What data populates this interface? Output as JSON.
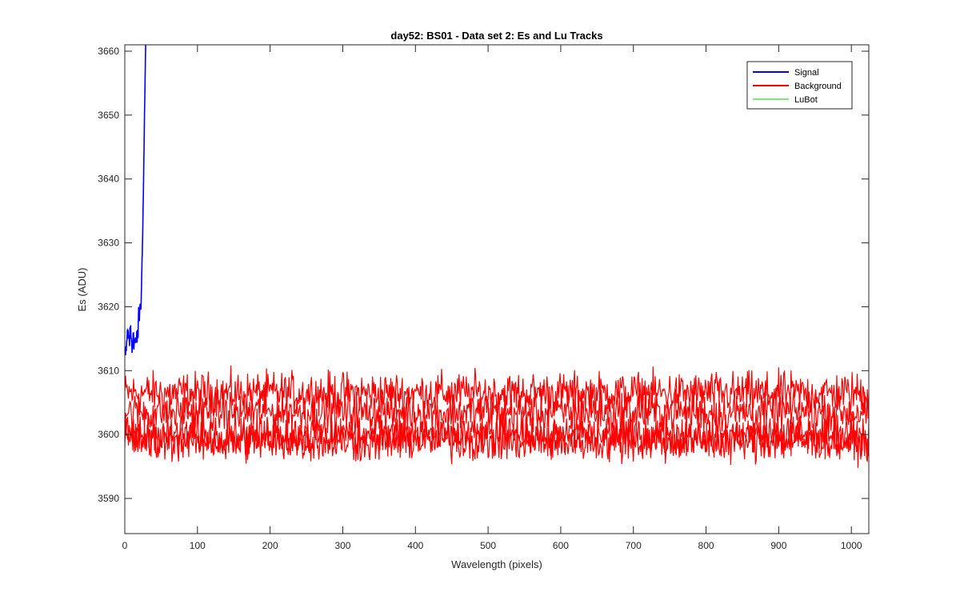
{
  "chart_data": {
    "type": "line",
    "title": "day52: BS01 - Data set 2: Es and Lu Tracks",
    "xlabel": "Wavelength (pixels)",
    "ylabel": "Es (ADU)",
    "xlim": [
      0,
      1024
    ],
    "ylim": [
      3584.5,
      3661
    ],
    "xticks": [
      0,
      100,
      200,
      300,
      400,
      500,
      600,
      700,
      800,
      900,
      1000
    ],
    "yticks": [
      3590,
      3600,
      3610,
      3620,
      3630,
      3640,
      3650,
      3660
    ],
    "grid": false,
    "legend_position": "top-right",
    "series": [
      {
        "name": "Signal",
        "color": "#0000ff",
        "x": [
          0,
          2,
          4,
          6,
          8,
          10,
          12,
          14,
          16,
          18,
          19,
          20,
          21,
          22,
          23,
          24,
          25,
          26,
          27,
          28,
          28.7
        ],
        "y": [
          3614,
          3613,
          3616,
          3614,
          3617,
          3614,
          3615,
          3614,
          3616,
          3615,
          3620,
          3617,
          3621,
          3620,
          3623,
          3628,
          3634,
          3641,
          3649,
          3656,
          3661
        ]
      },
      {
        "name": "Background",
        "color": "#ff0000",
        "tracks": [
          {
            "level": 3606.5,
            "noise": 2.0
          },
          {
            "level": 3603.5,
            "noise": 2.0
          },
          {
            "level": 3600.0,
            "noise": 2.0
          },
          {
            "level": 3599.0,
            "noise": 2.0
          }
        ]
      },
      {
        "name": "LuBot",
        "color": "#00cc00"
      }
    ]
  }
}
